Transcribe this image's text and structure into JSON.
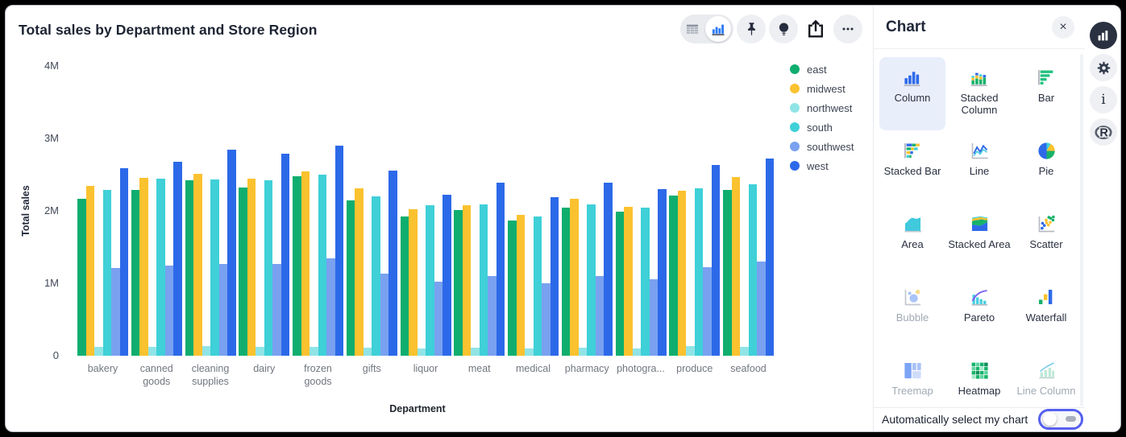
{
  "chart_card": {
    "title": "Total sales by Department and Store Region",
    "toolbar": {
      "view_toggle": {
        "options": [
          "table-view",
          "column-chart-view"
        ],
        "selected": "column-chart-view"
      },
      "buttons": [
        "pin",
        "insights-bulb",
        "share-export",
        "more-options"
      ]
    }
  },
  "chart_data": {
    "type": "bar",
    "title": "Total sales by Department and Store Region",
    "xlabel": "Department",
    "ylabel": "Total sales",
    "ylim": [
      0,
      4000000
    ],
    "yticks": [
      "0",
      "1M",
      "2M",
      "3M",
      "4M"
    ],
    "grid": false,
    "legend_position": "right",
    "value_unit": "M",
    "categories": [
      "bakery",
      "canned goods",
      "cleaning supplies",
      "dairy",
      "frozen goods",
      "gifts",
      "liquor",
      "meat",
      "medical",
      "pharmacy",
      "photogra...",
      "produce",
      "seafood"
    ],
    "series": [
      {
        "name": "east",
        "color": "#0fae6f",
        "values": [
          2.17,
          2.29,
          2.42,
          2.32,
          2.48,
          2.14,
          1.92,
          2.01,
          1.87,
          2.05,
          1.99,
          2.21,
          2.29
        ]
      },
      {
        "name": "midwest",
        "color": "#fbc22f",
        "values": [
          2.35,
          2.46,
          2.51,
          2.45,
          2.54,
          2.31,
          2.02,
          2.08,
          1.94,
          2.17,
          2.06,
          2.28,
          2.47
        ]
      },
      {
        "name": "northwest",
        "color": "#90e4e6",
        "values": [
          0.12,
          0.12,
          0.13,
          0.12,
          0.12,
          0.11,
          0.1,
          0.11,
          0.1,
          0.11,
          0.1,
          0.13,
          0.12
        ]
      },
      {
        "name": "south",
        "color": "#3fd0d8",
        "values": [
          2.29,
          2.45,
          2.43,
          2.42,
          2.5,
          2.2,
          2.08,
          2.09,
          1.92,
          2.09,
          2.04,
          2.31,
          2.37
        ]
      },
      {
        "name": "southwest",
        "color": "#79a1f0",
        "values": [
          1.21,
          1.25,
          1.27,
          1.27,
          1.35,
          1.13,
          1.02,
          1.1,
          1.0,
          1.1,
          1.06,
          1.22,
          1.3
        ]
      },
      {
        "name": "west",
        "color": "#2c69e9",
        "values": [
          2.59,
          2.68,
          2.84,
          2.79,
          2.9,
          2.56,
          2.22,
          2.39,
          2.19,
          2.39,
          2.3,
          2.63,
          2.72
        ]
      }
    ]
  },
  "panel": {
    "title": "Chart",
    "chart_types": [
      {
        "label": "Column",
        "icon": "column",
        "selected": true,
        "enabled": true
      },
      {
        "label": "Stacked Column",
        "icon": "stacked-column",
        "selected": false,
        "enabled": true
      },
      {
        "label": "Bar",
        "icon": "bar",
        "selected": false,
        "enabled": true
      },
      {
        "label": "Stacked Bar",
        "icon": "stacked-bar",
        "selected": false,
        "enabled": true
      },
      {
        "label": "Line",
        "icon": "line",
        "selected": false,
        "enabled": true
      },
      {
        "label": "Pie",
        "icon": "pie",
        "selected": false,
        "enabled": true
      },
      {
        "label": "Area",
        "icon": "area",
        "selected": false,
        "enabled": true
      },
      {
        "label": "Stacked Area",
        "icon": "stacked-area",
        "selected": false,
        "enabled": true
      },
      {
        "label": "Scatter",
        "icon": "scatter",
        "selected": false,
        "enabled": true
      },
      {
        "label": "Bubble",
        "icon": "bubble",
        "selected": false,
        "enabled": false
      },
      {
        "label": "Pareto",
        "icon": "pareto",
        "selected": false,
        "enabled": true
      },
      {
        "label": "Waterfall",
        "icon": "waterfall",
        "selected": false,
        "enabled": true
      },
      {
        "label": "Treemap",
        "icon": "treemap",
        "selected": false,
        "enabled": false
      },
      {
        "label": "Heatmap",
        "icon": "heatmap",
        "selected": false,
        "enabled": true
      },
      {
        "label": "Line Column",
        "icon": "line-column",
        "selected": false,
        "enabled": false
      }
    ],
    "auto_select": {
      "label": "Automatically select my chart",
      "toggle_on": false
    }
  },
  "sidebar": {
    "items": [
      {
        "icon": "bar-chart-icon",
        "active": true
      },
      {
        "icon": "gear-icon",
        "active": false
      },
      {
        "icon": "info-icon",
        "active": false
      },
      {
        "icon": "r-logo-icon",
        "active": false
      }
    ]
  },
  "colors": {
    "accent_blue": "#2c69e9",
    "selected_tile_bg": "#e9eefb",
    "toggle_focus_ring": "#5560ef",
    "icon_dark": "#262d3e"
  }
}
